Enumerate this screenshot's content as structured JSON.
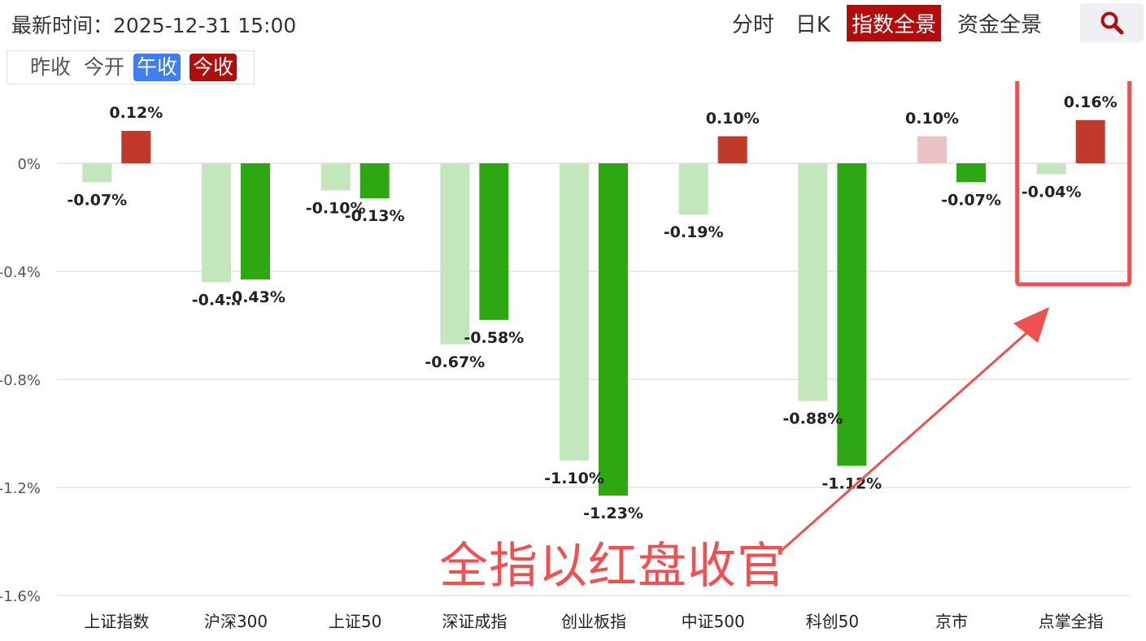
{
  "header": {
    "update_time": "最新时间：2025-12-31 15:00",
    "tabs": [
      {
        "label": "分时",
        "active": false
      },
      {
        "label": "日K",
        "active": false
      },
      {
        "label": "指数全景",
        "active": true
      },
      {
        "label": "资金全景",
        "active": false
      }
    ],
    "search_icon": "search-icon"
  },
  "compare_toggle": {
    "prev_close": "昨收",
    "today_open": "今开",
    "midday_close": "午收",
    "today_close": "今收"
  },
  "chart_data": {
    "type": "bar",
    "categories": [
      "上证指数",
      "沪深300",
      "上证50",
      "深证成指",
      "创业板指",
      "中证500",
      "科创50",
      "京市",
      "点掌全指"
    ],
    "series": [
      {
        "name": "午收",
        "values": [
          -0.07,
          -0.44,
          -0.1,
          -0.67,
          -1.1,
          -0.19,
          -0.88,
          0.1,
          -0.04
        ],
        "labels": [
          "-0.07%",
          "-0.4…",
          "-0.10%",
          "-0.67%",
          "-1.10%",
          "-0.19%",
          "-0.88%",
          "0.10%",
          "-0.04%"
        ]
      },
      {
        "name": "今收",
        "values": [
          0.12,
          -0.43,
          -0.13,
          -0.58,
          -1.23,
          0.1,
          -1.12,
          -0.07,
          0.16
        ],
        "labels": [
          "0.12%",
          "-0.43%",
          "-0.13%",
          "-0.58%",
          "-1.23%",
          "0.10%",
          "-1.12%",
          "-0.07%",
          "0.16%"
        ]
      }
    ],
    "y_ticks": [
      0,
      -0.4,
      -0.8,
      -1.2,
      -1.6
    ],
    "y_tick_labels": [
      "0%",
      "-0.4%",
      "-0.8%",
      "-1.2%",
      "-1.6%"
    ],
    "ylim": [
      -1.6,
      0.2
    ],
    "grid": true,
    "colors": {
      "up_today": "#c0392b",
      "down_today": "#2ea812",
      "up_noon": "#ecc3c5",
      "down_noon": "#c3e6bc"
    },
    "highlight_category": "点掌全指",
    "annotation": "全指以红盘收官"
  }
}
